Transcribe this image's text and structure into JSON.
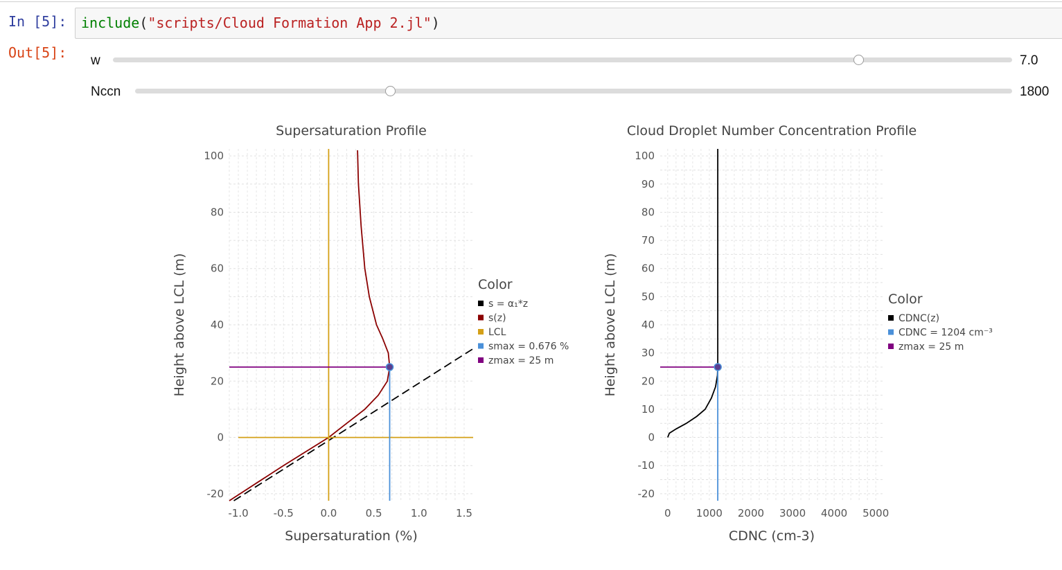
{
  "notebook": {
    "input_prompt": "In [5]:",
    "output_prompt": "Out[5]:",
    "code": {
      "fn": "include",
      "open": "(",
      "arg": "\"scripts/Cloud Formation App 2.jl\"",
      "close": ")"
    }
  },
  "sliders": [
    {
      "label": "w",
      "value_text": "7.0",
      "fraction": 0.829
    },
    {
      "label": "Nccn",
      "value_text": "1800",
      "fraction": 0.291
    }
  ],
  "chart_data": [
    {
      "type": "line",
      "title": "Supersaturation Profile",
      "xlabel": "Supersaturation (%)",
      "ylabel": "Height above LCL (m)",
      "xlim": [
        -1.1,
        1.6
      ],
      "ylim": [
        -22.5,
        102.5
      ],
      "xticks": [
        "-1.0",
        "-0.5",
        "0.0",
        "0.5",
        "1.0",
        "1.5"
      ],
      "yticks": [
        "-20",
        "0",
        "20",
        "40",
        "60",
        "80",
        "100"
      ],
      "grid": true,
      "legend": {
        "title": "Color",
        "position": "right",
        "entries": [
          {
            "label": "s = α₁*z",
            "color": "#000000"
          },
          {
            "label": "s(z)",
            "color": "#8b0000"
          },
          {
            "label": "LCL",
            "color": "#d4a017"
          },
          {
            "label": "smax = 0.676 %",
            "color": "#4a90d9"
          },
          {
            "label": "zmax = 25 m",
            "color": "#800080"
          }
        ]
      },
      "series": [
        {
          "name": "s = α₁*z",
          "color": "#000000",
          "dash": true,
          "x": [
            -1.05,
            1.6
          ],
          "y": [
            -22.5,
            31.5
          ]
        },
        {
          "name": "s(z)",
          "color": "#8b0000",
          "x": [
            -1.1,
            -0.5,
            0.0,
            0.2,
            0.4,
            0.55,
            0.65,
            0.676,
            0.66,
            0.6,
            0.53,
            0.45,
            0.4,
            0.36,
            0.33,
            0.32
          ],
          "y": [
            -22.5,
            -10,
            0,
            5,
            10,
            15,
            20,
            25,
            30,
            35,
            40,
            50,
            60,
            75,
            90,
            102
          ]
        },
        {
          "name": "LCL",
          "color": "#d4a017",
          "x": [
            0.0,
            0.0
          ],
          "y": [
            -22.5,
            102.5
          ]
        },
        {
          "name": "LCL",
          "color": "#d4a017",
          "x": [
            -1.0,
            1.6
          ],
          "y": [
            0,
            0
          ]
        },
        {
          "name": "smax = 0.676 %",
          "color": "#4a90d9",
          "x": [
            0.676,
            0.676
          ],
          "y": [
            -22.5,
            25
          ]
        },
        {
          "name": "zmax = 25 m",
          "color": "#800080",
          "x": [
            -1.1,
            0.676
          ],
          "y": [
            25,
            25
          ]
        }
      ],
      "point": {
        "x": 0.676,
        "y": 25
      }
    },
    {
      "type": "line",
      "title": "Cloud Droplet Number Concentration Profile",
      "xlabel": "CDNC (cm-3)",
      "ylabel": "Height above LCL (m)",
      "xlim": [
        -180,
        5180
      ],
      "ylim": [
        -22.5,
        102.5
      ],
      "xticks": [
        "0",
        "1000",
        "2000",
        "3000",
        "4000",
        "5000"
      ],
      "yticks": [
        "-20",
        "-10",
        "0",
        "10",
        "20",
        "30",
        "40",
        "50",
        "60",
        "70",
        "80",
        "90",
        "100"
      ],
      "grid": true,
      "legend": {
        "title": "Color",
        "position": "right",
        "entries": [
          {
            "label": "CDNC(z)",
            "color": "#000000"
          },
          {
            "label": "CDNC = 1204 cm⁻³",
            "color": "#4a90d9"
          },
          {
            "label": "zmax = 25 m",
            "color": "#800080"
          }
        ]
      },
      "series": [
        {
          "name": "CDNC(z)",
          "color": "#000000",
          "x": [
            0,
            40,
            200,
            450,
            700,
            900,
            1050,
            1150,
            1195,
            1204,
            1204,
            1204
          ],
          "y": [
            0,
            1.5,
            3,
            5,
            7.5,
            10,
            14,
            18,
            22,
            25,
            60,
            102.5
          ]
        },
        {
          "name": "CDNC = 1204 cm⁻³",
          "color": "#4a90d9",
          "x": [
            1204,
            1204
          ],
          "y": [
            -22.5,
            25
          ]
        },
        {
          "name": "zmax = 25 m",
          "color": "#800080",
          "x": [
            -180,
            1204
          ],
          "y": [
            25,
            25
          ]
        }
      ],
      "point": {
        "x": 1204,
        "y": 25
      }
    }
  ]
}
